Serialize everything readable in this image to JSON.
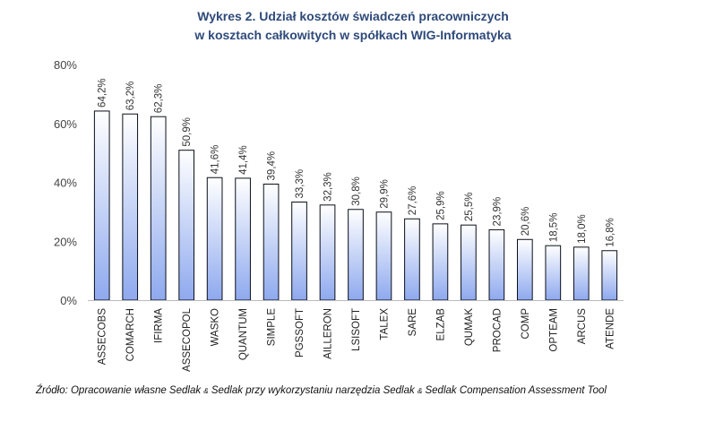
{
  "title_line1": "Wykres 2. Udział kosztów świadczeń pracowniczych",
  "title_line2": "w kosztach całkowitych w spółkach WIG-Informatyka",
  "source": {
    "part1": "Źródło: Opracowanie własne Sedlak ",
    "amp1": "&",
    "part2": " Sedlak przy wykorzystaniu narzędzia Sedlak ",
    "amp2": "&",
    "part3": " Sedlak Compensation Assessment Tool"
  },
  "chart_data": {
    "type": "bar",
    "title": "Wykres 2. Udział kosztów świadczeń pracowniczych w kosztach całkowitych w spółkach WIG-Informatyka",
    "categories": [
      "ASSECOBS",
      "COMARCH",
      "IFIRMA",
      "ASSECOPOL",
      "WASKO",
      "QUANTUM",
      "SIMPLE",
      "PGSSOFT",
      "AILLERON",
      "LSISOFT",
      "TALEX",
      "SARE",
      "ELZAB",
      "QUMAK",
      "PROCAD",
      "COMP",
      "OPTEAM",
      "ARCUS",
      "ATENDE"
    ],
    "values": [
      64.2,
      63.2,
      62.3,
      50.9,
      41.6,
      41.4,
      39.4,
      33.3,
      32.3,
      30.8,
      29.9,
      27.6,
      25.9,
      25.5,
      23.9,
      20.6,
      18.5,
      18.0,
      16.8
    ],
    "data_labels": [
      "64,2%",
      "63,2%",
      "62,3%",
      "50,9%",
      "41,6%",
      "41,4%",
      "39,4%",
      "33,3%",
      "32,3%",
      "30,8%",
      "29,9%",
      "27,6%",
      "25,9%",
      "25,5%",
      "23,9%",
      "20,6%",
      "18,5%",
      "18,0%",
      "16,8%"
    ],
    "y_ticks": [
      "0%",
      "20%",
      "40%",
      "60%",
      "80%"
    ],
    "y_tick_values": [
      0,
      20,
      40,
      60,
      80
    ],
    "ylim": [
      0,
      80
    ],
    "grid": false,
    "xlabel": "",
    "ylabel": "",
    "colors": {
      "bar_top": "#FFFFFF",
      "bar_bottom": "#8EA9EE",
      "bar_stroke": "#0B0F1A",
      "title": "#2E4A7A"
    }
  }
}
